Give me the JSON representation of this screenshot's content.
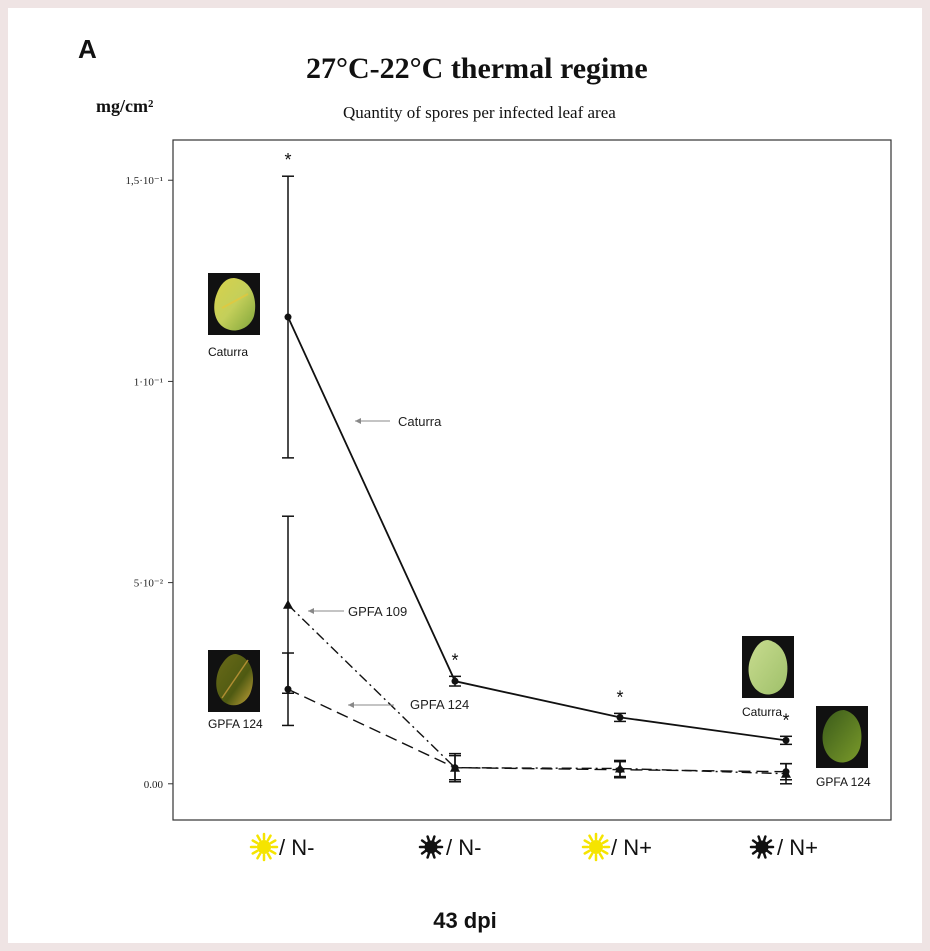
{
  "panel_label": "A",
  "chart_data": {
    "type": "line",
    "title": "27°C-22°C thermal regime",
    "subtitle": "Quantity of spores per infected leaf area",
    "ylabel": "mg/cm²",
    "xlabel": "43 dpi",
    "categories": [
      "/ N-",
      "/ N-",
      "/ N+",
      "/ N+"
    ],
    "category_icons": [
      "sun-icon",
      "dark-sun-icon",
      "sun-icon",
      "dark-sun-icon"
    ],
    "yticks": [
      "1,5·10⁻¹",
      "1·10⁻¹",
      "5·10⁻²",
      "0.00"
    ],
    "ytick_values": [
      0.15,
      0.1,
      0.05,
      0.0
    ],
    "ylim": [
      -0.009,
      0.16
    ],
    "grid": false,
    "series": [
      {
        "name": "Caturra",
        "style": "solid",
        "values": [
          0.116,
          0.0255,
          0.0165,
          0.0108
        ],
        "err": [
          0.035,
          0.0012,
          0.001,
          0.001
        ]
      },
      {
        "name": "GPFA 109",
        "style": "dashdot",
        "values": [
          0.0445,
          0.004,
          0.0038,
          0.0025
        ],
        "err": [
          0.022,
          0.0035,
          0.002,
          0.0025
        ]
      },
      {
        "name": "GPFA 124",
        "style": "dashed",
        "values": [
          0.0235,
          0.004,
          0.0035,
          0.003
        ],
        "err": [
          0.009,
          0.003,
          0.002,
          0.002
        ]
      }
    ],
    "significance_marks": [
      "*",
      "*",
      "*",
      "*"
    ],
    "annotations": [
      "Caturra",
      "GPFA 109",
      "GPFA 124"
    ],
    "leaf_labels": [
      "Caturra",
      "GPFA 124",
      "Caturra",
      "GPFA 124"
    ],
    "colors": {
      "line": "#111111",
      "sun": "#f5e400",
      "dark_sun": "#111111",
      "frame": "#333333"
    }
  }
}
